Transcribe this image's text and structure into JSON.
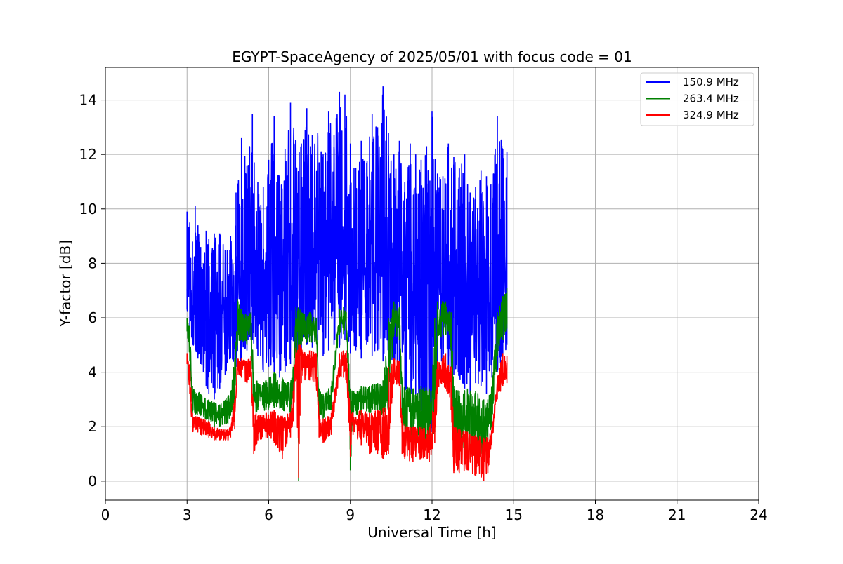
{
  "chart_data": {
    "type": "line",
    "title": "EGYPT-SpaceAgency of 2025/05/01 with focus code = 01",
    "xlabel": "Universal Time [h]",
    "ylabel": "Y-factor [dB]",
    "xlim": [
      0,
      24
    ],
    "ylim": [
      -0.7,
      15.2
    ],
    "xticks": [
      0,
      3,
      6,
      9,
      12,
      15,
      18,
      21,
      24
    ],
    "yticks": [
      0,
      2,
      4,
      6,
      8,
      10,
      12,
      14
    ],
    "grid": true,
    "legend_position": "top-right",
    "series": [
      {
        "name": "150.9 MHz",
        "color": "#0000ff",
        "x": [
          3.0,
          3.1,
          3.2,
          3.3,
          3.4,
          3.5,
          3.6,
          3.7,
          3.8,
          3.9,
          4.0,
          4.2,
          4.4,
          4.6,
          4.8,
          5.0,
          5.2,
          5.4,
          5.6,
          5.8,
          6.0,
          6.2,
          6.4,
          6.6,
          6.8,
          7.0,
          7.2,
          7.4,
          7.6,
          7.8,
          8.0,
          8.2,
          8.4,
          8.6,
          8.8,
          9.0,
          9.2,
          9.4,
          9.6,
          9.8,
          10.0,
          10.2,
          10.4,
          10.6,
          10.8,
          11.0,
          11.2,
          11.4,
          11.6,
          11.8,
          12.0,
          12.2,
          12.4,
          12.6,
          12.8,
          13.0,
          13.2,
          13.4,
          13.6,
          13.8,
          14.0,
          14.2,
          14.4,
          14.6,
          14.75
        ],
        "high": [
          9.9,
          9.5,
          8.8,
          10.1,
          9.4,
          8.6,
          8.0,
          9.2,
          8.9,
          8.4,
          9.1,
          9.1,
          8.5,
          9.0,
          10.6,
          12.6,
          11.6,
          13.5,
          11.0,
          10.8,
          11.8,
          13.4,
          11.2,
          12.2,
          13.9,
          12.5,
          12.4,
          13.7,
          12.7,
          12.8,
          12.0,
          13.6,
          12.7,
          14.3,
          14.2,
          12.4,
          11.5,
          12.5,
          11.7,
          13.5,
          13.0,
          14.5,
          12.8,
          12.0,
          12.5,
          11.0,
          12.4,
          12.0,
          11.8,
          12.3,
          13.6,
          11.3,
          11.2,
          12.4,
          11.9,
          11.5,
          12.0,
          10.6,
          10.8,
          11.4,
          11.2,
          10.9,
          13.4,
          12.2,
          12.1
        ],
        "low": [
          6.3,
          5.5,
          5.0,
          4.8,
          4.5,
          4.3,
          4.0,
          3.5,
          3.2,
          3.6,
          3.0,
          3.4,
          3.9,
          4.5,
          4.2,
          4.3,
          4.8,
          5.2,
          4.6,
          4.0,
          4.2,
          4.0,
          3.8,
          4.0,
          4.3,
          4.2,
          4.8,
          5.0,
          4.9,
          5.2,
          4.6,
          4.8,
          5.0,
          4.9,
          5.2,
          4.7,
          4.8,
          4.5,
          5.0,
          4.6,
          4.8,
          4.4,
          4.6,
          4.2,
          3.8,
          3.4,
          3.0,
          2.8,
          2.6,
          2.4,
          1.8,
          3.5,
          4.4,
          4.0,
          3.9,
          3.8,
          3.4,
          3.2,
          3.6,
          3.5,
          3.2,
          3.8,
          4.0,
          4.2,
          5.0
        ],
        "values": [
          7.8,
          7.2,
          6.9,
          7.0,
          6.7,
          6.5,
          6.3,
          6.2,
          6.1,
          6.2,
          6.0,
          6.1,
          6.2,
          6.6,
          7.0,
          7.8,
          8.0,
          8.3,
          7.9,
          7.5,
          7.6,
          7.8,
          7.4,
          7.5,
          8.0,
          8.2,
          8.4,
          8.5,
          8.3,
          8.4,
          8.2,
          8.5,
          8.6,
          8.8,
          8.7,
          8.3,
          8.1,
          8.0,
          7.9,
          8.2,
          8.1,
          8.3,
          8.0,
          7.7,
          7.5,
          7.0,
          6.8,
          6.6,
          6.4,
          6.3,
          6.5,
          7.2,
          7.5,
          7.4,
          7.3,
          7.1,
          7.0,
          6.9,
          7.0,
          7.1,
          7.0,
          7.2,
          7.6,
          7.8,
          8.0
        ]
      },
      {
        "name": "263.4 MHz",
        "color": "#008000",
        "x": [
          3.0,
          3.1,
          3.2,
          3.5,
          3.8,
          4.0,
          4.2,
          4.5,
          4.6,
          4.75,
          4.85,
          5.0,
          5.2,
          5.35,
          5.45,
          5.6,
          5.9,
          6.2,
          6.5,
          6.8,
          6.9,
          7.0,
          7.1,
          7.15,
          7.2,
          7.5,
          7.75,
          7.85,
          8.0,
          8.3,
          8.6,
          8.75,
          8.85,
          9.0,
          9.1,
          9.4,
          9.7,
          10.0,
          10.2,
          10.4,
          10.6,
          10.8,
          10.9,
          11.0,
          11.3,
          11.6,
          11.9,
          12.1,
          12.2,
          12.5,
          12.7,
          12.8,
          13.0,
          13.3,
          13.6,
          13.9,
          14.05,
          14.2,
          14.4,
          14.6,
          14.75
        ],
        "high": [
          6.0,
          5.7,
          3.5,
          3.2,
          3.0,
          2.9,
          2.8,
          3.1,
          3.3,
          4.5,
          6.7,
          6.3,
          6.1,
          6.2,
          4.0,
          3.6,
          3.7,
          4.0,
          3.8,
          3.6,
          4.2,
          6.4,
          6.4,
          6.3,
          6.2,
          6.2,
          6.0,
          3.4,
          3.2,
          3.5,
          6.3,
          6.4,
          6.2,
          3.4,
          3.3,
          3.5,
          3.5,
          3.6,
          3.7,
          6.0,
          6.6,
          6.4,
          3.6,
          3.5,
          3.4,
          3.5,
          3.4,
          6.0,
          6.6,
          6.6,
          6.2,
          3.5,
          3.3,
          3.4,
          3.3,
          3.0,
          3.0,
          3.5,
          6.2,
          6.8,
          7.1
        ],
        "low": [
          5.5,
          4.4,
          2.5,
          2.4,
          2.2,
          2.0,
          2.0,
          2.1,
          2.4,
          2.8,
          5.0,
          5.2,
          5.0,
          5.2,
          2.4,
          2.6,
          2.6,
          2.7,
          2.6,
          2.5,
          3.0,
          5.3,
          0.0,
          4.6,
          5.0,
          5.1,
          5.1,
          2.4,
          2.3,
          2.6,
          5.4,
          5.4,
          5.2,
          0.4,
          2.3,
          2.4,
          2.5,
          2.5,
          2.4,
          2.6,
          5.4,
          5.2,
          2.2,
          1.9,
          1.6,
          1.4,
          1.3,
          1.8,
          5.2,
          5.4,
          4.8,
          1.4,
          1.2,
          1.1,
          1.0,
          1.0,
          1.4,
          1.9,
          4.6,
          5.2,
          5.6
        ],
        "values": [
          5.8,
          5.2,
          3.0,
          2.8,
          2.6,
          2.5,
          2.4,
          2.6,
          2.8,
          3.6,
          5.9,
          5.8,
          5.6,
          5.7,
          3.2,
          3.1,
          3.1,
          3.3,
          3.2,
          3.0,
          3.5,
          5.9,
          5.5,
          5.8,
          5.7,
          5.7,
          5.6,
          2.8,
          2.8,
          3.0,
          5.9,
          5.9,
          5.8,
          2.8,
          2.8,
          3.0,
          3.0,
          3.0,
          3.0,
          4.5,
          6.0,
          5.8,
          2.9,
          2.7,
          2.6,
          2.5,
          2.6,
          3.5,
          5.9,
          6.0,
          5.5,
          2.6,
          2.5,
          2.4,
          2.4,
          2.2,
          2.2,
          2.8,
          5.4,
          6.2,
          6.5
        ]
      },
      {
        "name": "324.9 MHz",
        "color": "#ff0000",
        "x": [
          3.0,
          3.1,
          3.2,
          3.5,
          3.8,
          4.0,
          4.2,
          4.5,
          4.6,
          4.75,
          4.85,
          5.0,
          5.2,
          5.35,
          5.45,
          5.6,
          5.9,
          6.2,
          6.5,
          6.8,
          6.9,
          7.0,
          7.1,
          7.15,
          7.2,
          7.5,
          7.75,
          7.85,
          8.0,
          8.3,
          8.6,
          8.75,
          8.85,
          9.0,
          9.1,
          9.4,
          9.7,
          10.0,
          10.2,
          10.4,
          10.6,
          10.8,
          10.9,
          11.0,
          11.3,
          11.6,
          11.9,
          12.1,
          12.2,
          12.5,
          12.7,
          12.8,
          13.0,
          13.3,
          13.6,
          13.9,
          14.05,
          14.2,
          14.4,
          14.6,
          14.75
        ],
        "high": [
          4.7,
          4.3,
          2.5,
          2.3,
          2.2,
          2.0,
          1.9,
          1.9,
          2.0,
          3.0,
          4.5,
          4.5,
          4.4,
          4.6,
          2.6,
          2.4,
          2.5,
          2.6,
          2.4,
          2.5,
          3.3,
          4.9,
          5.0,
          5.0,
          4.9,
          4.8,
          4.7,
          2.4,
          2.3,
          2.5,
          4.7,
          4.8,
          4.8,
          2.6,
          2.5,
          2.6,
          2.5,
          2.6,
          2.7,
          4.2,
          4.5,
          4.4,
          2.2,
          2.1,
          2.0,
          2.0,
          2.0,
          3.0,
          4.4,
          4.7,
          4.2,
          2.0,
          1.9,
          1.8,
          1.7,
          1.6,
          1.6,
          2.0,
          3.8,
          4.7,
          4.6
        ],
        "low": [
          4.3,
          3.2,
          1.8,
          1.7,
          1.6,
          1.5,
          1.5,
          1.5,
          1.6,
          1.9,
          3.9,
          3.8,
          3.6,
          3.8,
          1.0,
          1.5,
          1.6,
          1.4,
          0.8,
          1.6,
          2.2,
          3.8,
          0.1,
          2.4,
          3.6,
          3.7,
          3.5,
          1.6,
          1.4,
          1.7,
          3.8,
          3.8,
          3.6,
          0.9,
          1.7,
          1.3,
          1.0,
          1.0,
          0.8,
          1.0,
          3.6,
          3.5,
          1.0,
          0.8,
          0.7,
          0.8,
          0.7,
          1.4,
          3.2,
          3.4,
          2.6,
          0.3,
          0.3,
          0.4,
          0.2,
          0.0,
          0.3,
          1.4,
          3.0,
          3.5,
          3.6
        ],
        "values": [
          4.5,
          3.8,
          2.1,
          2.0,
          1.9,
          1.8,
          1.7,
          1.7,
          1.8,
          2.5,
          4.3,
          4.3,
          4.2,
          4.3,
          2.0,
          2.0,
          2.1,
          2.1,
          2.0,
          2.1,
          2.8,
          4.5,
          4.6,
          4.6,
          4.5,
          4.4,
          4.3,
          2.0,
          2.0,
          2.1,
          4.3,
          4.4,
          4.3,
          2.3,
          2.2,
          2.1,
          2.0,
          2.0,
          1.9,
          2.4,
          4.1,
          4.0,
          1.7,
          1.6,
          1.5,
          1.5,
          1.5,
          2.2,
          3.9,
          4.1,
          3.6,
          1.6,
          1.5,
          1.4,
          1.3,
          1.2,
          1.2,
          1.7,
          3.4,
          3.8,
          3.9
        ]
      }
    ]
  }
}
